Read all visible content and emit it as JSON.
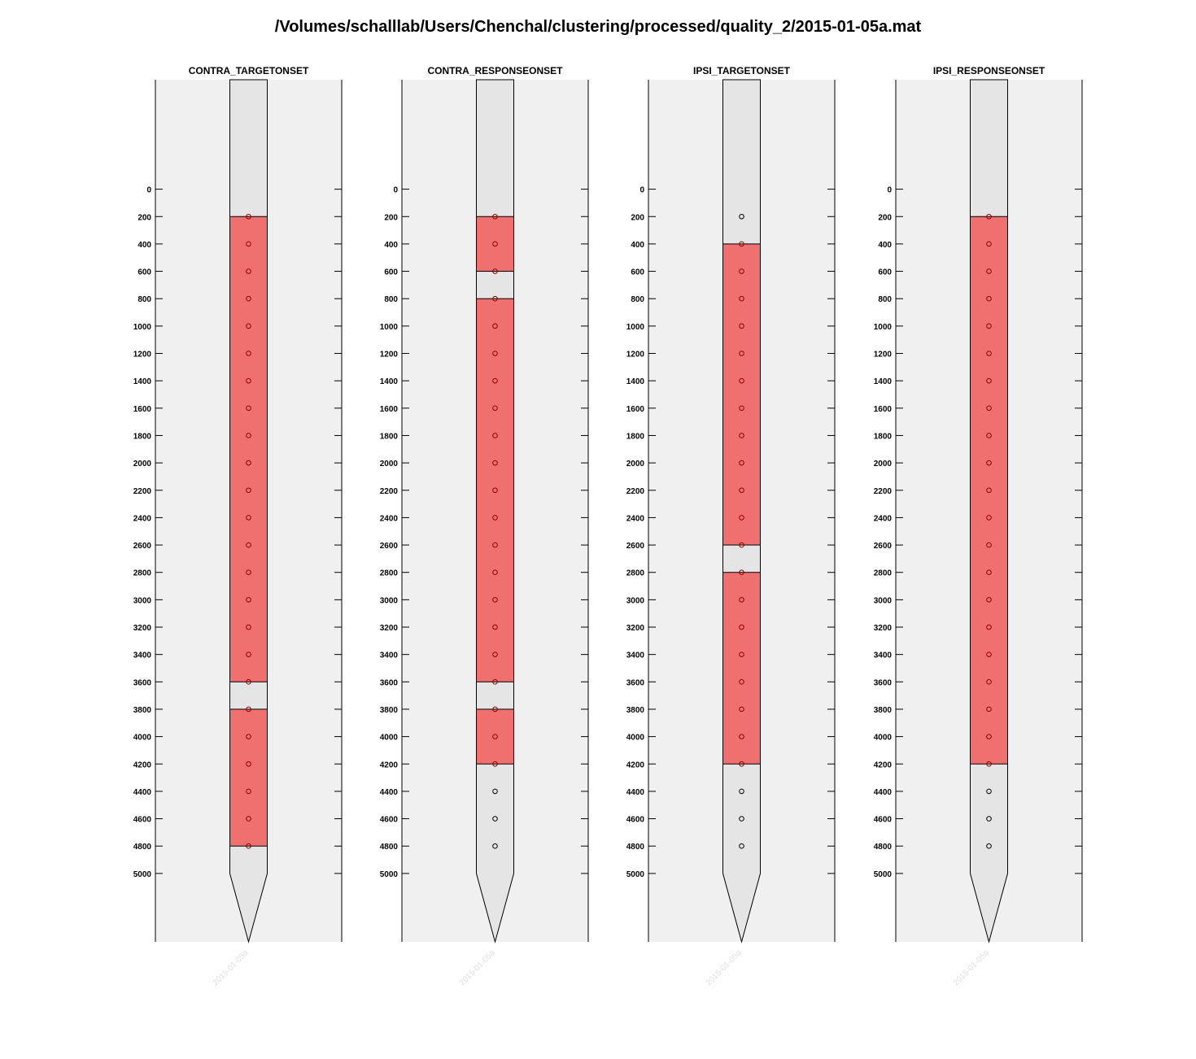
{
  "figure": {
    "title": "/Volumes/schalllab/Users/Chenchal/clustering/processed/quality_2/2015-01-05a.mat"
  },
  "colors": {
    "axes_background": "#f0f0f0",
    "probe_fill": "#e5e5e5",
    "selected_fill": "#f07070",
    "marker_in_selected": "#8b0000",
    "marker_default": "#000000",
    "outline": "#000000",
    "x_tick_label": "#e0e0e0"
  },
  "chart_data": [
    {
      "type": "probe-depth",
      "title": "CONTRA_TARGETONSET",
      "x_tick_label": "2015-01-05a",
      "y_ticks": [
        0,
        200,
        400,
        600,
        800,
        1000,
        1200,
        1400,
        1600,
        1800,
        2000,
        2200,
        2400,
        2600,
        2800,
        3000,
        3200,
        3400,
        3600,
        3800,
        4000,
        4200,
        4400,
        4600,
        4800,
        5000
      ],
      "ylim": [
        -800,
        5500
      ],
      "y_direction": "reverse",
      "probe_shaft_end": 5000,
      "channel_depths": [
        200,
        400,
        600,
        800,
        1000,
        1200,
        1400,
        1600,
        1800,
        2000,
        2200,
        2400,
        2600,
        2800,
        3000,
        3200,
        3400,
        3600,
        3800,
        4000,
        4200,
        4400,
        4600,
        4800
      ],
      "selected_ranges": [
        [
          200,
          3600
        ],
        [
          3800,
          4800
        ]
      ]
    },
    {
      "type": "probe-depth",
      "title": "CONTRA_RESPONSEONSET",
      "x_tick_label": "2015-01-05a",
      "y_ticks": [
        0,
        200,
        400,
        600,
        800,
        1000,
        1200,
        1400,
        1600,
        1800,
        2000,
        2200,
        2400,
        2600,
        2800,
        3000,
        3200,
        3400,
        3600,
        3800,
        4000,
        4200,
        4400,
        4600,
        4800,
        5000
      ],
      "ylim": [
        -800,
        5500
      ],
      "y_direction": "reverse",
      "probe_shaft_end": 5000,
      "channel_depths": [
        200,
        400,
        600,
        800,
        1000,
        1200,
        1400,
        1600,
        1800,
        2000,
        2200,
        2400,
        2600,
        2800,
        3000,
        3200,
        3400,
        3600,
        3800,
        4000,
        4200,
        4400,
        4600,
        4800
      ],
      "selected_ranges": [
        [
          200,
          600
        ],
        [
          800,
          3600
        ],
        [
          3800,
          4200
        ]
      ]
    },
    {
      "type": "probe-depth",
      "title": "IPSI_TARGETONSET",
      "x_tick_label": "2015-01-05a",
      "y_ticks": [
        0,
        200,
        400,
        600,
        800,
        1000,
        1200,
        1400,
        1600,
        1800,
        2000,
        2200,
        2400,
        2600,
        2800,
        3000,
        3200,
        3400,
        3600,
        3800,
        4000,
        4200,
        4400,
        4600,
        4800,
        5000
      ],
      "ylim": [
        -800,
        5500
      ],
      "y_direction": "reverse",
      "probe_shaft_end": 5000,
      "channel_depths": [
        200,
        400,
        600,
        800,
        1000,
        1200,
        1400,
        1600,
        1800,
        2000,
        2200,
        2400,
        2600,
        2800,
        3000,
        3200,
        3400,
        3600,
        3800,
        4000,
        4200,
        4400,
        4600,
        4800
      ],
      "selected_ranges": [
        [
          400,
          2600
        ],
        [
          2800,
          4200
        ]
      ]
    },
    {
      "type": "probe-depth",
      "title": "IPSI_RESPONSEONSET",
      "x_tick_label": "2015-01-05a",
      "y_ticks": [
        0,
        200,
        400,
        600,
        800,
        1000,
        1200,
        1400,
        1600,
        1800,
        2000,
        2200,
        2400,
        2600,
        2800,
        3000,
        3200,
        3400,
        3600,
        3800,
        4000,
        4200,
        4400,
        4600,
        4800,
        5000
      ],
      "ylim": [
        -800,
        5500
      ],
      "y_direction": "reverse",
      "probe_shaft_end": 5000,
      "channel_depths": [
        200,
        400,
        600,
        800,
        1000,
        1200,
        1400,
        1600,
        1800,
        2000,
        2200,
        2400,
        2600,
        2800,
        3000,
        3200,
        3400,
        3600,
        3800,
        4000,
        4200,
        4400,
        4600,
        4800
      ],
      "selected_ranges": [
        [
          200,
          4200
        ]
      ]
    }
  ]
}
